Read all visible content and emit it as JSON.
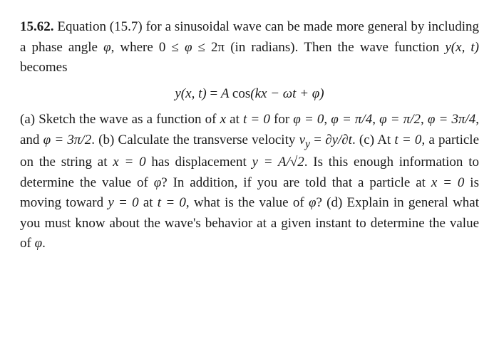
{
  "problem": {
    "number": "15.62.",
    "intro_a": "Equation (15.7) for a sinusoidal wave can be made more general by including a phase angle ",
    "phi": "φ",
    "intro_b": ", where 0 ≤ ",
    "intro_c": " ≤ 2π (in radi­ans). Then the wave function ",
    "yfun": "y(x, t)",
    "intro_d": " becomes",
    "equation_lhs": "y(x, t)",
    "equation_eq": " = ",
    "equation_A": "A ",
    "equation_cos": "cos",
    "equation_arg": "(kx − ωt + φ)",
    "part_a_label": "(a)",
    "part_a_1": " Sketch the wave as a function of ",
    "x": "x",
    "part_a_2": " at ",
    "t": "t",
    "eq0": " = 0",
    "part_a_3": " for ",
    "phi0": "φ = 0",
    "comma": ", ",
    "phi1": "φ = π/4",
    "phi2": "φ = π/2",
    "phi3": "φ = 3π/4",
    "and": ", and ",
    "phi4": "φ = 3π/2",
    "part_b_label": ". (b)",
    "part_b_1": " Calculate the transverse velocity ",
    "vy": "v",
    "vy_sub": "y",
    "eq": " = ",
    "dydt": "∂y/∂t",
    "part_c_label": ". (c)",
    "part_c_1": " At ",
    "part_c_2": ", a particle on the string at ",
    "xeq0": "x = 0",
    "part_c_3": " has displacement ",
    "yexpr": "y = A/√2",
    "part_c_4": ". Is this enough information to determine the value of ",
    "part_c_5": "? In addition, if you are told that a par­ticle at ",
    "part_c_6": " is moving toward ",
    "yeq0": "y = 0",
    "part_c_7": " at ",
    "part_c_8": ", what is the value of ",
    "part_d_label": "? (d)",
    "part_d_1": " Explain in general what you must know about the wave's behavior at a given instant to determine the value of ",
    "period": "."
  }
}
